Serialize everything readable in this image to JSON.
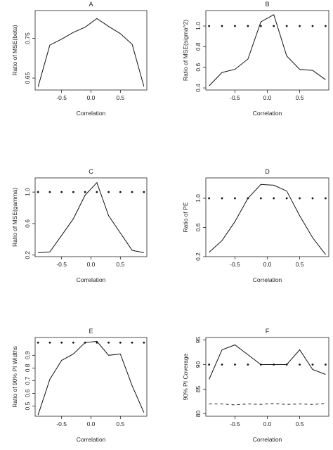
{
  "chart_data": [
    {
      "type": "line",
      "title": "A",
      "xlabel": "Correlation",
      "ylabel": "Ratio of MSE(beta)",
      "xlim": [
        -0.95,
        0.95
      ],
      "ylim": [
        0.62,
        0.82
      ],
      "xticks": [
        -0.5,
        0.0,
        0.5
      ],
      "xtick_labels": [
        "-0.5",
        "0.0",
        "0.5"
      ],
      "yticks": [
        0.65,
        0.75
      ],
      "ytick_labels": [
        "0.65",
        "0.75"
      ],
      "series": [
        {
          "style": "solid",
          "x": [
            -0.9,
            -0.7,
            -0.5,
            -0.3,
            -0.1,
            0.1,
            0.3,
            0.5,
            0.7,
            0.9
          ],
          "y": [
            0.628,
            0.733,
            0.748,
            0.765,
            0.778,
            0.8,
            0.78,
            0.762,
            0.735,
            0.629
          ]
        }
      ]
    },
    {
      "type": "line",
      "title": "B",
      "xlabel": "Correlation",
      "ylabel": "Ratio of MSE(sigma^2)",
      "xlim": [
        -0.95,
        0.95
      ],
      "ylim": [
        0.38,
        1.15
      ],
      "xticks": [
        -0.5,
        0.0,
        0.5
      ],
      "xtick_labels": [
        "-0.5",
        "0.0",
        "0.5"
      ],
      "yticks": [
        0.4,
        0.6,
        0.8,
        1.0
      ],
      "ytick_labels": [
        "0.4",
        "0.6",
        "0.8",
        "1.0"
      ],
      "series": [
        {
          "style": "solid",
          "x": [
            -0.9,
            -0.7,
            -0.5,
            -0.3,
            -0.1,
            0.1,
            0.3,
            0.5,
            0.7,
            0.9
          ],
          "y": [
            0.42,
            0.55,
            0.58,
            0.68,
            1.04,
            1.11,
            0.71,
            0.58,
            0.57,
            0.48
          ]
        },
        {
          "style": "dotted",
          "x": [
            -0.9,
            -0.7,
            -0.5,
            -0.3,
            -0.1,
            0.1,
            0.3,
            0.5,
            0.7,
            0.9
          ],
          "y": [
            1.0,
            1.0,
            1.0,
            1.0,
            1.0,
            1.0,
            1.0,
            1.0,
            1.0,
            1.0
          ]
        }
      ]
    },
    {
      "type": "line",
      "title": "C",
      "xlabel": "Correlation",
      "ylabel": "Ratio of MSE(gamma)",
      "xlim": [
        -0.95,
        0.95
      ],
      "ylim": [
        0.18,
        1.18
      ],
      "xticks": [
        -0.5,
        0.0,
        0.5
      ],
      "xtick_labels": [
        "-0.5",
        "0.0",
        "0.5"
      ],
      "yticks": [
        0.2,
        0.6,
        1.0
      ],
      "ytick_labels": [
        "0.2",
        "0.6",
        "1.0"
      ],
      "series": [
        {
          "style": "solid",
          "x": [
            -0.9,
            -0.7,
            -0.5,
            -0.3,
            -0.1,
            0.1,
            0.3,
            0.5,
            0.7,
            0.9
          ],
          "y": [
            0.23,
            0.24,
            0.45,
            0.66,
            0.96,
            1.12,
            0.7,
            0.48,
            0.26,
            0.23
          ]
        },
        {
          "style": "dotted",
          "x": [
            -0.9,
            -0.7,
            -0.5,
            -0.3,
            -0.1,
            0.1,
            0.3,
            0.5,
            0.7,
            0.9
          ],
          "y": [
            1.0,
            1.0,
            1.0,
            1.0,
            1.0,
            1.0,
            1.0,
            1.0,
            1.0,
            1.0
          ]
        }
      ]
    },
    {
      "type": "line",
      "title": "D",
      "xlabel": "Correlation",
      "ylabel": "Ratio of PE",
      "xlim": [
        -0.95,
        0.95
      ],
      "ylim": [
        0.2,
        1.28
      ],
      "xticks": [
        -0.5,
        0.0,
        0.5
      ],
      "xtick_labels": [
        "-0.5",
        "0.0",
        "0.5"
      ],
      "yticks": [
        0.2,
        0.6,
        1.0
      ],
      "ytick_labels": [
        "0.2",
        "0.6",
        "1.0"
      ],
      "series": [
        {
          "style": "solid",
          "x": [
            -0.9,
            -0.7,
            -0.5,
            -0.3,
            -0.1,
            0.1,
            0.3,
            0.5,
            0.7,
            0.9
          ],
          "y": [
            0.26,
            0.42,
            0.68,
            1.0,
            1.19,
            1.18,
            1.1,
            0.76,
            0.46,
            0.23
          ]
        },
        {
          "style": "dotted",
          "x": [
            -0.9,
            -0.7,
            -0.5,
            -0.3,
            -0.1,
            0.1,
            0.3,
            0.5,
            0.7,
            0.9
          ],
          "y": [
            1.0,
            1.0,
            1.0,
            1.0,
            1.0,
            1.0,
            1.0,
            1.0,
            1.0,
            1.0
          ]
        }
      ]
    },
    {
      "type": "line",
      "title": "E",
      "xlabel": "Correlation",
      "ylabel": "Ratio of 90% PI Widths",
      "xlim": [
        -0.95,
        0.95
      ],
      "ylim": [
        0.42,
        1.04
      ],
      "xticks": [
        -0.5,
        0.0,
        0.5
      ],
      "xtick_labels": [
        "-0.5",
        "0.0",
        "0.5"
      ],
      "yticks": [
        0.5,
        0.6,
        0.7,
        0.8,
        0.9
      ],
      "ytick_labels": [
        "0.5",
        "0.6",
        "0.7",
        "0.8",
        "0.9"
      ],
      "series": [
        {
          "style": "solid",
          "x": [
            -0.9,
            -0.7,
            -0.5,
            -0.3,
            -0.1,
            0.1,
            0.3,
            0.5,
            0.7,
            0.9
          ],
          "y": [
            0.43,
            0.71,
            0.86,
            0.91,
            1.0,
            1.01,
            0.9,
            0.91,
            0.66,
            0.45
          ]
        },
        {
          "style": "dotted",
          "x": [
            -0.9,
            -0.7,
            -0.5,
            -0.3,
            -0.1,
            0.1,
            0.3,
            0.5,
            0.7,
            0.9
          ],
          "y": [
            1.0,
            1.0,
            1.0,
            1.0,
            1.0,
            1.0,
            1.0,
            1.0,
            1.0,
            1.0
          ]
        }
      ]
    },
    {
      "type": "line",
      "title": "F",
      "xlabel": "Correlation",
      "ylabel": "90% PI Coverage",
      "xlim": [
        -0.95,
        0.95
      ],
      "ylim": [
        79.5,
        95.5
      ],
      "xticks": [
        -0.5,
        0.0,
        0.5
      ],
      "xtick_labels": [
        "-0.5",
        "0.0",
        "0.5"
      ],
      "yticks": [
        80,
        85,
        90,
        95
      ],
      "ytick_labels": [
        "80",
        "85",
        "90",
        "95"
      ],
      "series": [
        {
          "style": "solid",
          "x": [
            -0.9,
            -0.7,
            -0.5,
            -0.3,
            -0.1,
            0.1,
            0.3,
            0.5,
            0.7,
            0.9
          ],
          "y": [
            87.0,
            93.0,
            94.0,
            92.0,
            90.0,
            90.0,
            90.0,
            93.0,
            89.0,
            88.0
          ]
        },
        {
          "style": "dotted",
          "x": [
            -0.9,
            -0.7,
            -0.5,
            -0.3,
            -0.1,
            0.1,
            0.3,
            0.5,
            0.7,
            0.9
          ],
          "y": [
            90.0,
            90.0,
            90.0,
            90.0,
            90.0,
            90.0,
            90.0,
            90.0,
            90.0,
            90.0
          ]
        },
        {
          "style": "dashed",
          "x": [
            -0.9,
            -0.7,
            -0.5,
            -0.3,
            -0.1,
            0.1,
            0.3,
            0.5,
            0.7,
            0.9
          ],
          "y": [
            82.0,
            82.0,
            81.8,
            82.0,
            81.9,
            82.1,
            81.9,
            82.0,
            81.9,
            82.1
          ]
        }
      ]
    }
  ]
}
